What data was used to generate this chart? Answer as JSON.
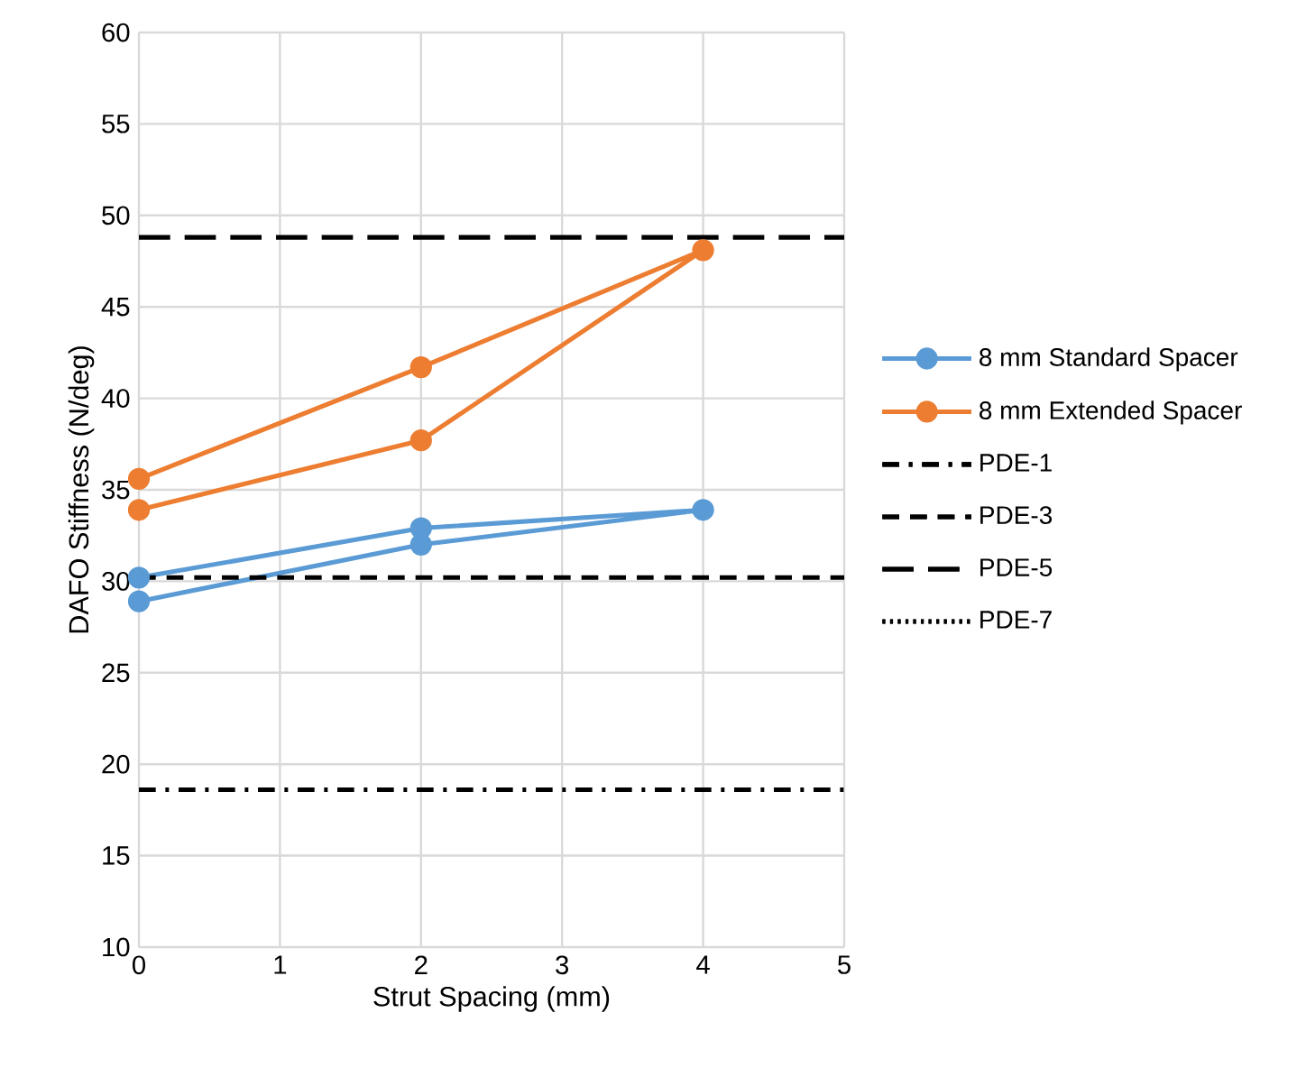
{
  "chart_data": {
    "type": "line",
    "xlabel": "Strut Spacing (mm)",
    "ylabel": "DAFO Stiffness (N/deg)",
    "xlim": [
      0,
      5
    ],
    "xticks": [
      0,
      1,
      2,
      3,
      4,
      5
    ],
    "ylim": [
      10,
      60
    ],
    "yticks": [
      10,
      15,
      20,
      25,
      30,
      35,
      40,
      45,
      50,
      55,
      60
    ],
    "grid": true,
    "legend": "right",
    "series": [
      {
        "name": "8 mm Standard Spacer",
        "color": "#5b9bd5",
        "x": [
          0,
          2,
          4,
          2,
          0
        ],
        "values": [
          28.9,
          32.0,
          33.9,
          32.9,
          30.2
        ],
        "marker": "circle",
        "line_style": "solid"
      },
      {
        "name": "8 mm Extended Spacer",
        "color": "#ed7d31",
        "x": [
          0,
          2,
          4,
          2,
          0
        ],
        "values": [
          33.9,
          37.7,
          48.1,
          41.7,
          35.6
        ],
        "marker": "circle",
        "line_style": "solid"
      },
      {
        "name": "PDE-1",
        "color": "#000000",
        "x": [
          0,
          5
        ],
        "values": [
          18.6,
          18.6
        ],
        "marker": "none",
        "line_style": "dashdot"
      },
      {
        "name": "PDE-3",
        "color": "#000000",
        "x": [
          0,
          5
        ],
        "values": [
          30.2,
          30.2
        ],
        "marker": "none",
        "line_style": "dashed"
      },
      {
        "name": "PDE-5",
        "color": "#000000",
        "x": [
          0,
          5
        ],
        "values": [
          48.8,
          48.8
        ],
        "marker": "none",
        "line_style": "longdashed"
      },
      {
        "name": "PDE-7",
        "color": "#000000",
        "values": [
          null
        ],
        "marker": "none",
        "line_style": "dotted"
      }
    ]
  }
}
